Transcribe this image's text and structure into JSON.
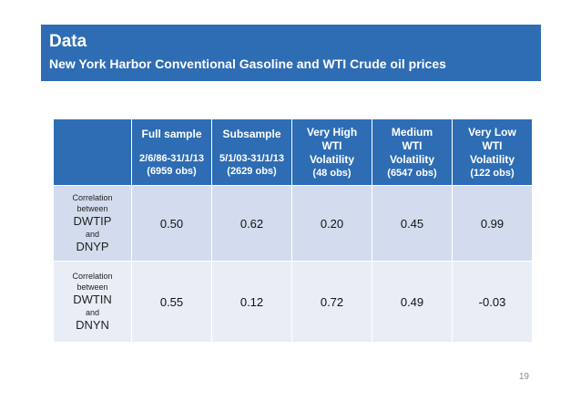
{
  "header": {
    "title": "Data",
    "subtitle": "New York Harbor Conventional Gasoline and WTI Crude oil prices"
  },
  "table": {
    "columns": [
      {
        "lines": [
          "Full sample"
        ],
        "sub": [
          "2/6/86-31/1/13",
          "(6959 obs)"
        ]
      },
      {
        "lines": [
          "Subsample"
        ],
        "sub": [
          "5/1/03-31/1/13",
          "(2629 obs)"
        ]
      },
      {
        "lines": [
          "Very High",
          "WTI",
          "Volatility"
        ],
        "sub": [
          "(48 obs)"
        ]
      },
      {
        "lines": [
          "Medium",
          "WTI",
          "Volatility"
        ],
        "sub": [
          "(6547 obs)"
        ]
      },
      {
        "lines": [
          "Very Low",
          "WTI",
          "Volatility"
        ],
        "sub": [
          "(122 obs)"
        ]
      }
    ],
    "rows": [
      {
        "label": {
          "pre1": "Correlation",
          "pre2": "between",
          "var1": "DWTIP",
          "and": "and",
          "var2": "DNYP"
        },
        "values": [
          "0.50",
          "0.62",
          "0.20",
          "0.45",
          "0.99"
        ]
      },
      {
        "label": {
          "pre1": "Correlation",
          "pre2": "between",
          "var1": "DWTIN",
          "and": "and",
          "var2": "DNYN"
        },
        "values": [
          "0.55",
          "0.12",
          "0.72",
          "0.49",
          "-0.03"
        ]
      }
    ]
  },
  "footer": {
    "page_number": "19"
  },
  "colors": {
    "header_blue": "#2e6db4",
    "row1_fill": "#d3dcee",
    "row2_fill": "#e9edf6"
  }
}
